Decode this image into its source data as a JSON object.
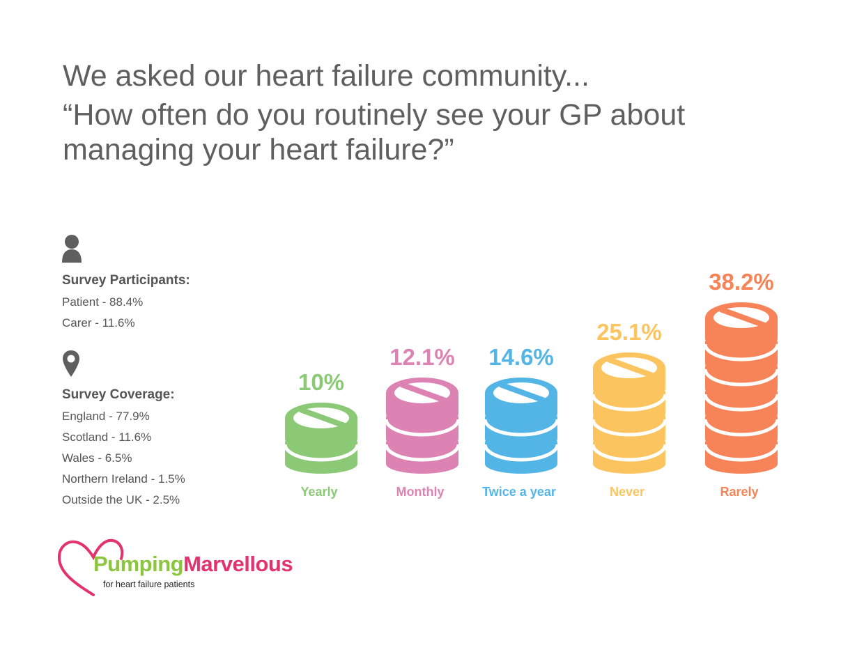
{
  "header": {
    "line1": "We asked our heart failure community...",
    "line2": "“How often do you routinely see your GP about managing your heart failure?”"
  },
  "participants": {
    "icon": "person-icon",
    "label": "Survey Participants:",
    "items": [
      "Patient - 88.4%",
      "Carer - 11.6%"
    ]
  },
  "coverage": {
    "icon": "map-pin-icon",
    "label": "Survey Coverage:",
    "items": [
      "England - 77.9%",
      "Scotland - 11.6%",
      "Wales - 6.5%",
      "Northern Ireland - 1.5%",
      "Outside the UK - 2.5%"
    ]
  },
  "chart_data": {
    "type": "bar",
    "categories": [
      "Yearly",
      "Monthly",
      "Twice a year",
      "Never",
      "Rarely"
    ],
    "values": [
      10,
      12.1,
      14.6,
      25.1,
      38.2
    ],
    "value_labels": [
      "10%",
      "12.1%",
      "14.6%",
      "25.1%",
      "38.2%"
    ],
    "stack_counts": [
      2,
      3,
      3,
      4,
      6
    ],
    "colors": [
      "#8bc976",
      "#dc83b3",
      "#53b5e6",
      "#fcc45f",
      "#f68458"
    ],
    "mark_icon": "pill-stack-icon"
  },
  "logo": {
    "icon": "heart-outline-icon",
    "brand_part1": "Pumping",
    "brand_part2": "Marvellous",
    "tagline": "for heart failure patients"
  }
}
